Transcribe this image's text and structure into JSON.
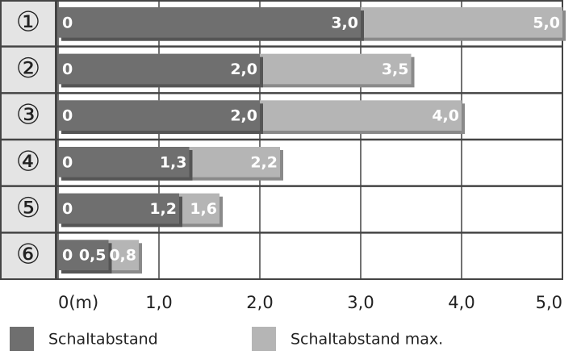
{
  "chart_data": {
    "type": "bar",
    "orientation": "horizontal",
    "overlap": true,
    "categories": [
      "①",
      "②",
      "③",
      "④",
      "⑤",
      "⑥"
    ],
    "bar_origin_label": "0",
    "series": [
      {
        "name": "Schaltabstand max.",
        "color": "#b5b5b5",
        "values": [
          5.0,
          3.5,
          4.0,
          2.2,
          1.6,
          0.8
        ],
        "value_labels": [
          "5,0",
          "3,5",
          "4,0",
          "2,2",
          "1,6",
          "0,8"
        ]
      },
      {
        "name": "Schaltabstand",
        "color": "#6f6f6f",
        "values": [
          3.0,
          2.0,
          2.0,
          1.3,
          1.2,
          0.5
        ],
        "value_labels": [
          "3,0",
          "2,0",
          "2,0",
          "1,3",
          "1,2",
          "0,5"
        ]
      }
    ],
    "legend_order": [
      1,
      0
    ],
    "xlim": [
      0,
      5
    ],
    "xticks": [
      {
        "value": 0,
        "label": "0(m)"
      },
      {
        "value": 1,
        "label": "1,0"
      },
      {
        "value": 2,
        "label": "2,0"
      },
      {
        "value": 3,
        "label": "3,0"
      },
      {
        "value": 4,
        "label": "4,0"
      },
      {
        "value": 5,
        "label": "5,0"
      }
    ],
    "grid": true
  }
}
